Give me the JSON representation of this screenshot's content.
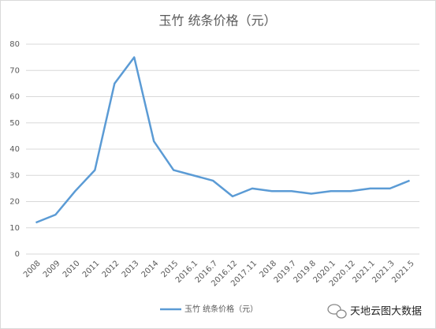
{
  "chart_data": {
    "type": "line",
    "title": "玉竹 统条价格（元）",
    "categories": [
      "2008",
      "2009",
      "2010",
      "2011",
      "2012",
      "2013",
      "2014",
      "2015",
      "2016.1",
      "2016.7",
      "2016.12",
      "2017.11",
      "2018",
      "2019.7",
      "2019.8",
      "2020.1",
      "2020.12",
      "2021.1",
      "2021.3",
      "2021.5"
    ],
    "series": [
      {
        "name": "玉竹 统条价格（元）",
        "color": "#5b9bd5",
        "values": [
          12,
          15,
          24,
          32,
          65,
          75,
          43,
          32,
          30,
          28,
          22,
          25,
          24,
          24,
          23,
          24,
          24,
          25,
          25,
          28
        ]
      }
    ],
    "ylim": [
      0,
      80
    ],
    "yticks": [
      0,
      10,
      20,
      30,
      40,
      50,
      60,
      70,
      80
    ],
    "grid": true,
    "legend": "bottom",
    "watermark": "天地云图大数据"
  }
}
